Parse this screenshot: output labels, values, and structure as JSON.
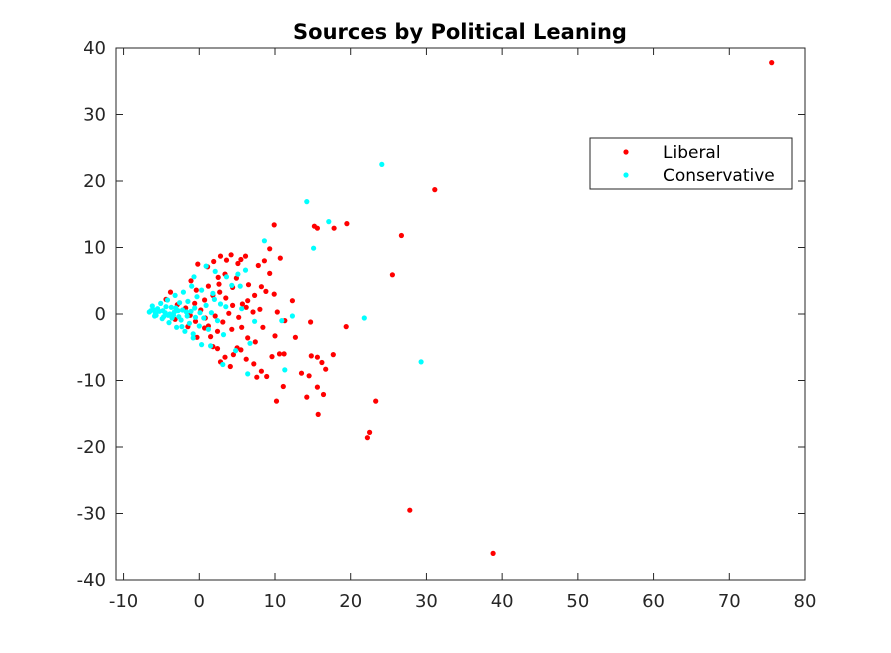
{
  "chart_data": {
    "type": "scatter",
    "title": "Sources by Political Leaning",
    "xlabel": "",
    "ylabel": "",
    "xlim": [
      -11,
      80
    ],
    "ylim": [
      -40,
      40
    ],
    "x_ticks": [
      -10,
      0,
      10,
      20,
      30,
      40,
      50,
      60,
      70,
      80
    ],
    "y_ticks": [
      -40,
      -30,
      -20,
      -10,
      0,
      10,
      20,
      30,
      40
    ],
    "x_tick_labels": [
      "-10",
      "0",
      "10",
      "20",
      "30",
      "40",
      "50",
      "60",
      "70",
      "80"
    ],
    "y_tick_labels": [
      "-40",
      "-30",
      "-20",
      "-10",
      "0",
      "10",
      "20",
      "30",
      "40"
    ],
    "grid": false,
    "box": true,
    "legend": {
      "location": "upper-right",
      "entries": [
        "Liberal",
        "Conservative"
      ]
    },
    "series": [
      {
        "name": "Liberal",
        "color": "#ff0000",
        "points": [
          [
            75.6,
            37.8
          ],
          [
            31.1,
            18.7
          ],
          [
            26.7,
            11.8
          ],
          [
            25.5,
            5.9
          ],
          [
            19.5,
            13.6
          ],
          [
            17.8,
            12.9
          ],
          [
            15.6,
            12.9
          ],
          [
            15.2,
            13.2
          ],
          [
            19.4,
            -1.9
          ],
          [
            17.7,
            -6.1
          ],
          [
            16.7,
            -8.3
          ],
          [
            16.2,
            -7.3
          ],
          [
            15.6,
            -6.5
          ],
          [
            14.8,
            -6.3
          ],
          [
            14.5,
            -9.3
          ],
          [
            15.6,
            -11.0
          ],
          [
            16.4,
            -12.1
          ],
          [
            15.7,
            -15.1
          ],
          [
            14.2,
            -12.5
          ],
          [
            13.5,
            -8.9
          ],
          [
            23.3,
            -13.1
          ],
          [
            22.5,
            -17.8
          ],
          [
            22.2,
            -18.6
          ],
          [
            27.8,
            -29.5
          ],
          [
            38.8,
            -36.0
          ],
          [
            10.2,
            -13.1
          ],
          [
            11.1,
            -10.9
          ],
          [
            11.2,
            -6.0
          ],
          [
            10.6,
            -6.0
          ],
          [
            9.6,
            -6.4
          ],
          [
            8.9,
            -9.4
          ],
          [
            8.2,
            -8.6
          ],
          [
            7.6,
            -9.5
          ],
          [
            7.2,
            -7.5
          ],
          [
            6.2,
            -6.8
          ],
          [
            5.5,
            -5.4
          ],
          [
            5.0,
            -5.1
          ],
          [
            4.5,
            -6.1
          ],
          [
            4.1,
            -7.9
          ],
          [
            3.4,
            -6.5
          ],
          [
            2.8,
            -7.2
          ],
          [
            2.4,
            -5.2
          ],
          [
            1.8,
            -4.9
          ],
          [
            1.5,
            -3.4
          ],
          [
            0.7,
            -2.1
          ],
          [
            -0.3,
            -3.5
          ],
          [
            9.9,
            13.4
          ],
          [
            9.3,
            9.8
          ],
          [
            10.7,
            8.4
          ],
          [
            8.6,
            8.0
          ],
          [
            7.8,
            7.3
          ],
          [
            9.3,
            6.1
          ],
          [
            6.1,
            8.7
          ],
          [
            5.5,
            8.2
          ],
          [
            5.1,
            7.6
          ],
          [
            4.2,
            8.9
          ],
          [
            3.6,
            8.1
          ],
          [
            2.8,
            8.7
          ],
          [
            1.9,
            7.9
          ],
          [
            1.1,
            7.1
          ],
          [
            -0.2,
            7.5
          ],
          [
            2.5,
            5.5
          ],
          [
            3.4,
            6.0
          ],
          [
            4.9,
            5.4
          ],
          [
            6.5,
            4.4
          ],
          [
            8.8,
            3.4
          ],
          [
            9.9,
            3.0
          ],
          [
            10.3,
            0.3
          ],
          [
            12.3,
            2.0
          ],
          [
            11.3,
            -1.0
          ],
          [
            12.7,
            -3.5
          ],
          [
            14.7,
            -1.2
          ],
          [
            10.0,
            -3.3
          ],
          [
            8.4,
            -2.0
          ],
          [
            8.0,
            0.7
          ],
          [
            7.1,
            0.3
          ],
          [
            6.4,
            2.0
          ],
          [
            5.7,
            1.5
          ],
          [
            4.4,
            1.3
          ],
          [
            3.5,
            2.4
          ],
          [
            2.7,
            3.3
          ],
          [
            1.8,
            2.8
          ],
          [
            0.7,
            2.1
          ],
          [
            -0.6,
            1.6
          ],
          [
            -1.8,
            0.9
          ],
          [
            -2.9,
            1.4
          ],
          [
            -3.8,
            3.3
          ],
          [
            -4.4,
            2.2
          ],
          [
            -3.2,
            -0.8
          ],
          [
            -1.5,
            -1.9
          ],
          [
            -0.5,
            -1.1
          ],
          [
            0.8,
            -0.6
          ],
          [
            2.1,
            -0.3
          ],
          [
            3.1,
            -1.2
          ],
          [
            4.3,
            -2.3
          ],
          [
            5.6,
            -2.0
          ],
          [
            6.4,
            -3.6
          ],
          [
            7.4,
            -4.2
          ],
          [
            2.4,
            -2.6
          ],
          [
            1.2,
            -1.8
          ],
          [
            -1.2,
            -0.2
          ],
          [
            0.2,
            0.6
          ],
          [
            3.9,
            0.1
          ],
          [
            5.2,
            -0.5
          ],
          [
            6.2,
            1.0
          ],
          [
            7.3,
            2.8
          ],
          [
            8.2,
            4.1
          ],
          [
            4.4,
            4.0
          ],
          [
            2.6,
            4.5
          ],
          [
            1.2,
            4.2
          ],
          [
            -0.4,
            3.6
          ],
          [
            -1.1,
            5.0
          ]
        ]
      },
      {
        "name": "Conservative",
        "color": "#00ffff",
        "points": [
          [
            24.1,
            22.5
          ],
          [
            14.2,
            16.9
          ],
          [
            17.1,
            13.9
          ],
          [
            15.1,
            9.9
          ],
          [
            21.8,
            -0.6
          ],
          [
            29.3,
            -7.2
          ],
          [
            12.3,
            -0.3
          ],
          [
            10.9,
            -1.0
          ],
          [
            11.3,
            -8.4
          ],
          [
            8.6,
            11.0
          ],
          [
            6.1,
            6.6
          ],
          [
            5.1,
            6.0
          ],
          [
            5.4,
            4.2
          ],
          [
            4.3,
            4.3
          ],
          [
            3.6,
            5.6
          ],
          [
            2.1,
            6.4
          ],
          [
            0.9,
            7.2
          ],
          [
            -0.7,
            5.6
          ],
          [
            1.8,
            3.1
          ],
          [
            3.5,
            1.1
          ],
          [
            5.6,
            0.8
          ],
          [
            7.3,
            -1.1
          ],
          [
            6.7,
            -4.4
          ],
          [
            6.4,
            -9.0
          ],
          [
            4.8,
            -5.5
          ],
          [
            3.1,
            -7.6
          ],
          [
            1.5,
            -4.8
          ],
          [
            0.3,
            -4.6
          ],
          [
            -0.8,
            -3.6
          ],
          [
            -2.3,
            -1.9
          ],
          [
            -6.4,
            0.5
          ],
          [
            -6.2,
            1.2
          ],
          [
            -5.9,
            -0.3
          ],
          [
            -5.5,
            0.8
          ],
          [
            -5.1,
            1.6
          ],
          [
            -4.9,
            -0.7
          ],
          [
            -4.5,
            0.2
          ],
          [
            -4.2,
            2.1
          ],
          [
            -4.0,
            -1.3
          ],
          [
            -3.7,
            1.0
          ],
          [
            -3.4,
            -0.2
          ],
          [
            -3.2,
            2.8
          ],
          [
            -3.0,
            -2.0
          ],
          [
            -2.8,
            0.5
          ],
          [
            -2.6,
            1.7
          ],
          [
            -2.4,
            -0.9
          ],
          [
            -2.1,
            3.3
          ],
          [
            -1.9,
            -2.6
          ],
          [
            -1.7,
            0.3
          ],
          [
            -1.5,
            1.9
          ],
          [
            -1.3,
            -1.4
          ],
          [
            -1.0,
            4.2
          ],
          [
            -0.8,
            -3.0
          ],
          [
            -0.6,
            0.9
          ],
          [
            -0.3,
            2.6
          ],
          [
            0.0,
            -1.8
          ],
          [
            0.3,
            3.6
          ],
          [
            0.6,
            -0.6
          ],
          [
            0.9,
            1.3
          ],
          [
            1.2,
            -2.3
          ],
          [
            1.6,
            0.2
          ],
          [
            2.0,
            2.2
          ],
          [
            2.4,
            -1.0
          ],
          [
            2.8,
            1.5
          ],
          [
            3.2,
            -3.1
          ],
          [
            -5.7,
            -0.2
          ],
          [
            -5.3,
            0.4
          ],
          [
            -4.7,
            -0.4
          ],
          [
            -4.4,
            1.1
          ],
          [
            -3.9,
            0.0
          ],
          [
            -3.6,
            -0.6
          ],
          [
            -3.1,
            0.9
          ],
          [
            -2.7,
            -0.4
          ],
          [
            -2.2,
            0.6
          ],
          [
            -1.6,
            -0.3
          ],
          [
            -1.1,
            0.4
          ],
          [
            -0.5,
            -0.5
          ],
          [
            0.1,
            0.2
          ],
          [
            -6.6,
            0.3
          ],
          [
            -6.0,
            0.6
          ],
          [
            -5.8,
            0.1
          ],
          [
            -4.8,
            0.5
          ],
          [
            -4.1,
            -0.2
          ],
          [
            -3.3,
            0.3
          ]
        ]
      }
    ]
  }
}
